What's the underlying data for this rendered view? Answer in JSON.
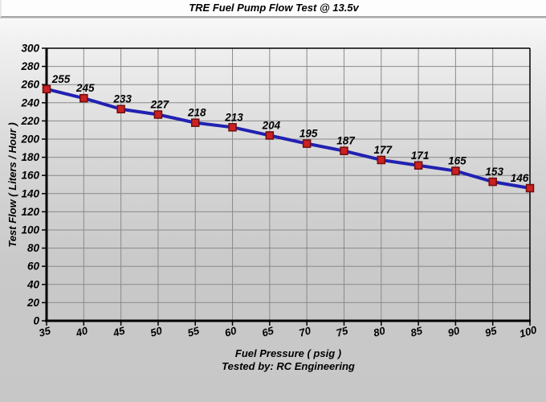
{
  "title": "TRE Fuel Pump Flow Test @ 13.5v",
  "chart_data": {
    "type": "line",
    "x": [
      35,
      40,
      45,
      50,
      55,
      60,
      65,
      70,
      75,
      80,
      85,
      90,
      95,
      100
    ],
    "series": [
      {
        "name": "Test Flow",
        "values": [
          255,
          245,
          233,
          227,
          218,
          213,
          204,
          195,
          187,
          177,
          171,
          165,
          153,
          146
        ]
      }
    ],
    "title": "TRE Fuel Pump Flow Test @ 13.5v",
    "xlabel": "Fuel Pressure ( psig )",
    "ylabel": "Test Flow ( Liters / Hour )",
    "footer": "Tested by: RC Engineering",
    "xlim": [
      35,
      100
    ],
    "ylim": [
      0,
      300
    ],
    "xtick_step": 5,
    "ytick_step": 20,
    "grid": true,
    "legend": "none",
    "data_labels": true,
    "colors": {
      "line": "#2121b2",
      "marker_fill": "#cc2121",
      "marker_stroke": "#6e0e0e",
      "grid": "#8a8a8a",
      "axis": "#000000",
      "text": "#000000"
    }
  }
}
